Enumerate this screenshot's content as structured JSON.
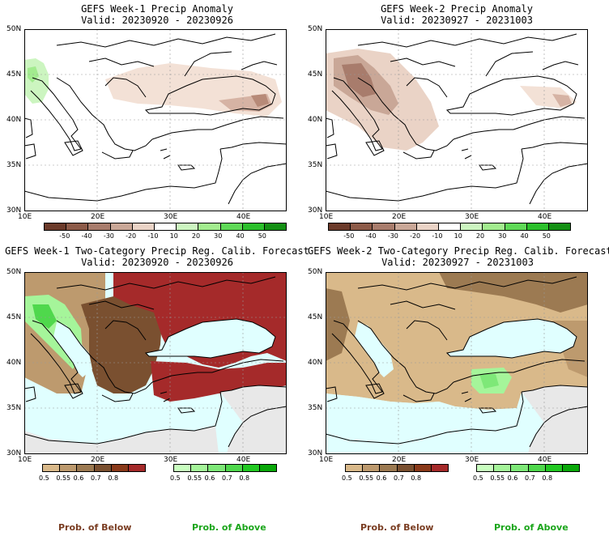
{
  "panels": [
    {
      "title": "GEFS Week-1 Precip Anomaly",
      "valid": "Valid: 20230920 - 20230926"
    },
    {
      "title": "GEFS Week-2 Precip Anomaly",
      "valid": "Valid: 20230927 - 20231003"
    },
    {
      "title": "GEFS Week-1 Two-Category Precip Reg. Calib. Forecast",
      "valid": "Valid: 20230920 - 20230926"
    },
    {
      "title": "GEFS Week-2 Two-Category Precip Reg. Calib. Forecast",
      "valid": "Valid: 20230927 - 20231003"
    }
  ],
  "axes": {
    "lat_labels": [
      "50N",
      "45N",
      "40N",
      "35N",
      "30N"
    ],
    "lon_labels": [
      "10E",
      "20E",
      "30E",
      "40E"
    ]
  },
  "anomaly_colorbar": {
    "labels": [
      "-50",
      "-40",
      "-30",
      "-20",
      "-10",
      "10",
      "20",
      "30",
      "40",
      "50"
    ],
    "colors": [
      "#6b3a2a",
      "#8c5a48",
      "#a87c6c",
      "#c9a797",
      "#ead3c6",
      "#ffffff",
      "#ccf5c0",
      "#a2ec8e",
      "#5fd957",
      "#2bbf2b",
      "#138f13"
    ]
  },
  "below_colorbar": {
    "labels": [
      "0.5",
      "0.55",
      "0.6",
      "0.7",
      "0.8"
    ],
    "colors": [
      "#d9b98a",
      "#bd9a6e",
      "#9c7a52",
      "#7a5030",
      "#8a3a1a",
      "#a52a2a"
    ]
  },
  "above_colorbar": {
    "labels": [
      "0.5",
      "0.55",
      "0.6",
      "0.7",
      "0.8"
    ],
    "colors": [
      "#c9ffc0",
      "#a5f59a",
      "#7ee878",
      "#4fd84c",
      "#22c922",
      "#0aa80a"
    ]
  },
  "footer": {
    "below": "Prob. of Below",
    "above": "Prob. of Above",
    "below_color": "#7a3d22",
    "above_color": "#1aa51a"
  }
}
